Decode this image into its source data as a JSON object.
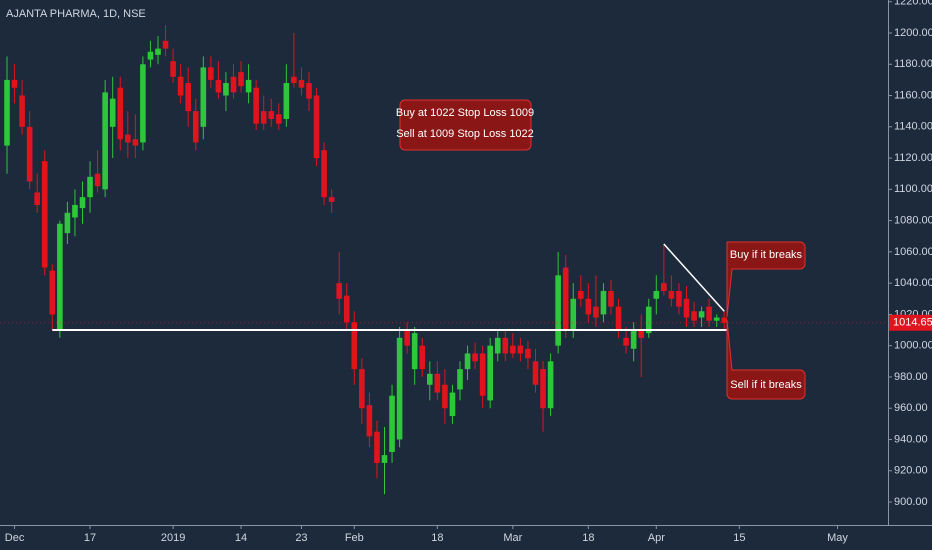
{
  "chart_data": {
    "type": "candlestick",
    "title": "AJANTA PHARMA, 1D, NSE",
    "up_color": "#2ec63a",
    "down_color": "#e0141e",
    "categories": [
      null,
      "Dec",
      null,
      null,
      null,
      null,
      null,
      null,
      null,
      null,
      null,
      "17",
      null,
      null,
      null,
      null,
      null,
      null,
      null,
      null,
      null,
      null,
      "2019",
      null,
      null,
      null,
      null,
      null,
      null,
      null,
      null,
      "14",
      null,
      null,
      null,
      null,
      null,
      null,
      null,
      "23",
      null,
      null,
      null,
      null,
      null,
      null,
      "Feb",
      null,
      null,
      null,
      null,
      null,
      null,
      null,
      null,
      null,
      null,
      "18",
      null,
      null,
      null,
      null,
      null,
      null,
      null,
      null,
      null,
      "Mar",
      null,
      null,
      null,
      null,
      null,
      null,
      null,
      null,
      null,
      "18",
      null,
      null,
      null,
      null,
      null,
      null,
      null,
      null,
      "Apr",
      null,
      null,
      null,
      null,
      null,
      null,
      null,
      null,
      null,
      null,
      "15",
      null,
      null,
      null,
      null,
      null,
      null,
      null,
      null,
      null,
      null,
      null,
      null,
      "May"
    ],
    "open": [
      1128,
      1170,
      1160,
      1140,
      1098,
      1118,
      1048,
      1010,
      1072,
      1082,
      1088,
      1095,
      1110,
      1100,
      1140,
      1165,
      1135,
      1132,
      1130,
      1183,
      1186,
      1195,
      1182,
      1172,
      1168,
      1150,
      1140,
      1178,
      1170,
      1160,
      1172,
      1175,
      1162,
      1165,
      1150,
      1150,
      1148,
      1145,
      1172,
      1170,
      1168,
      1160,
      1125,
      1095,
      1040,
      1032,
      1015,
      985,
      962,
      945,
      925,
      932,
      940,
      1010,
      985,
      1000,
      975,
      982,
      975,
      955,
      972,
      985,
      995,
      995,
      965,
      995,
      1005,
      1000,
      1000,
      998,
      990,
      985,
      960,
      1000,
      1050,
      1010,
      1035,
      1030,
      1025,
      1020,
      1035,
      1025,
      1005,
      998,
      1010,
      1008,
      1030,
      1040,
      1035,
      1035,
      1030,
      1022,
      1018,
      1025,
      1016,
      1018,
      null,
      null,
      null,
      null,
      null,
      null,
      null,
      null,
      null,
      null,
      null,
      null,
      null,
      null,
      null
    ],
    "high": [
      1185,
      1180,
      1170,
      1150,
      1110,
      1125,
      1052,
      1080,
      1092,
      1100,
      1105,
      1118,
      1125,
      1170,
      1172,
      1172,
      1150,
      1148,
      1185,
      1195,
      1198,
      1205,
      1190,
      1180,
      1178,
      1158,
      1185,
      1185,
      1182,
      1175,
      1180,
      1182,
      1180,
      1170,
      1160,
      1158,
      1155,
      1180,
      1200,
      1178,
      1175,
      1165,
      1130,
      1100,
      1060,
      1040,
      1022,
      992,
      970,
      952,
      948,
      975,
      1012,
      1015,
      1012,
      1005,
      990,
      990,
      985,
      975,
      990,
      1000,
      1002,
      1000,
      1005,
      1010,
      1010,
      1008,
      1005,
      1003,
      998,
      990,
      995,
      1060,
      1058,
      1040,
      1045,
      1040,
      1045,
      1040,
      1042,
      1030,
      1012,
      1015,
      1020,
      1030,
      1045,
      1065,
      1045,
      1040,
      1038,
      1028,
      1025,
      1030,
      1020,
      1022,
      null,
      null,
      null,
      null,
      null,
      null,
      null,
      null,
      null,
      null,
      null,
      null,
      null,
      null,
      null
    ],
    "low": [
      1110,
      1155,
      1135,
      1100,
      1085,
      1045,
      1010,
      1005,
      1065,
      1070,
      1078,
      1085,
      1098,
      1095,
      1120,
      1125,
      1120,
      1120,
      1125,
      1178,
      1180,
      1185,
      1168,
      1155,
      1140,
      1125,
      1132,
      1165,
      1158,
      1150,
      1158,
      1162,
      1155,
      1138,
      1138,
      1140,
      1138,
      1140,
      1165,
      1160,
      1150,
      1115,
      1090,
      1085,
      1020,
      1010,
      975,
      950,
      935,
      915,
      905,
      925,
      935,
      995,
      975,
      980,
      965,
      965,
      950,
      950,
      965,
      978,
      985,
      960,
      960,
      990,
      990,
      992,
      990,
      985,
      970,
      945,
      955,
      995,
      1005,
      1005,
      1025,
      1015,
      1012,
      1015,
      1020,
      1005,
      995,
      990,
      980,
      1005,
      1020,
      1032,
      1025,
      1020,
      1012,
      1012,
      1012,
      1012,
      1012,
      1010,
      null,
      null,
      null,
      null,
      null,
      null,
      null,
      null,
      null,
      null,
      null,
      null,
      null,
      null,
      null
    ],
    "close": [
      1170,
      1165,
      1140,
      1105,
      1090,
      1050,
      1020,
      1078,
      1085,
      1090,
      1095,
      1108,
      1102,
      1162,
      1158,
      1132,
      1130,
      1128,
      1180,
      1188,
      1190,
      1190,
      1172,
      1160,
      1150,
      1130,
      1178,
      1170,
      1162,
      1168,
      1162,
      1166,
      1170,
      1142,
      1142,
      1145,
      1142,
      1168,
      1168,
      1165,
      1158,
      1120,
      1095,
      1092,
      1030,
      1015,
      985,
      960,
      942,
      925,
      930,
      968,
      1005,
      1000,
      1008,
      985,
      982,
      970,
      960,
      970,
      985,
      995,
      990,
      968,
      1000,
      1005,
      995,
      995,
      995,
      992,
      975,
      960,
      990,
      1045,
      1010,
      1030,
      1030,
      1020,
      1018,
      1035,
      1025,
      1010,
      1000,
      1010,
      1005,
      1025,
      1035,
      1035,
      1030,
      1025,
      1018,
      1016,
      1022,
      1016,
      1018,
      1014.65,
      null,
      null,
      null,
      null,
      null,
      null,
      null,
      null,
      null,
      null,
      null,
      null,
      null,
      null,
      null
    ],
    "ylim": [
      885.3,
      1221.1
    ],
    "yticks": [
      {
        "value": 900,
        "label": "900.00"
      },
      {
        "value": 920,
        "label": "920.00"
      },
      {
        "value": 940,
        "label": "940.00"
      },
      {
        "value": 960,
        "label": "960.00"
      },
      {
        "value": 980,
        "label": "980.00"
      },
      {
        "value": 1000,
        "label": "1000.00"
      },
      {
        "value": 1020,
        "label": "1020.00"
      },
      {
        "value": 1040,
        "label": "1040.00"
      },
      {
        "value": 1060,
        "label": "1060.00"
      },
      {
        "value": 1080,
        "label": "1080.00"
      },
      {
        "value": 1100,
        "label": "1100.00"
      },
      {
        "value": 1120,
        "label": "1120.00"
      },
      {
        "value": 1140,
        "label": "1140.00"
      },
      {
        "value": 1160,
        "label": "1160.00"
      },
      {
        "value": 1180,
        "label": "1180.00"
      },
      {
        "value": 1200,
        "label": "1200.00"
      },
      {
        "value": 1220,
        "label": "1220.00"
      }
    ],
    "grid": false,
    "support_line": {
      "value": 1010
    },
    "trend_line": {
      "values": [
        1065,
        1022
      ]
    },
    "annotations": {
      "trade_plan": [
        "Buy at 1022 Stop Loss 1009",
        "Sell at 1009 Stop Loss 1022"
      ],
      "buy_breakout": "Buy if it breaks",
      "sell_breakout": "Sell if it breaks"
    }
  }
}
